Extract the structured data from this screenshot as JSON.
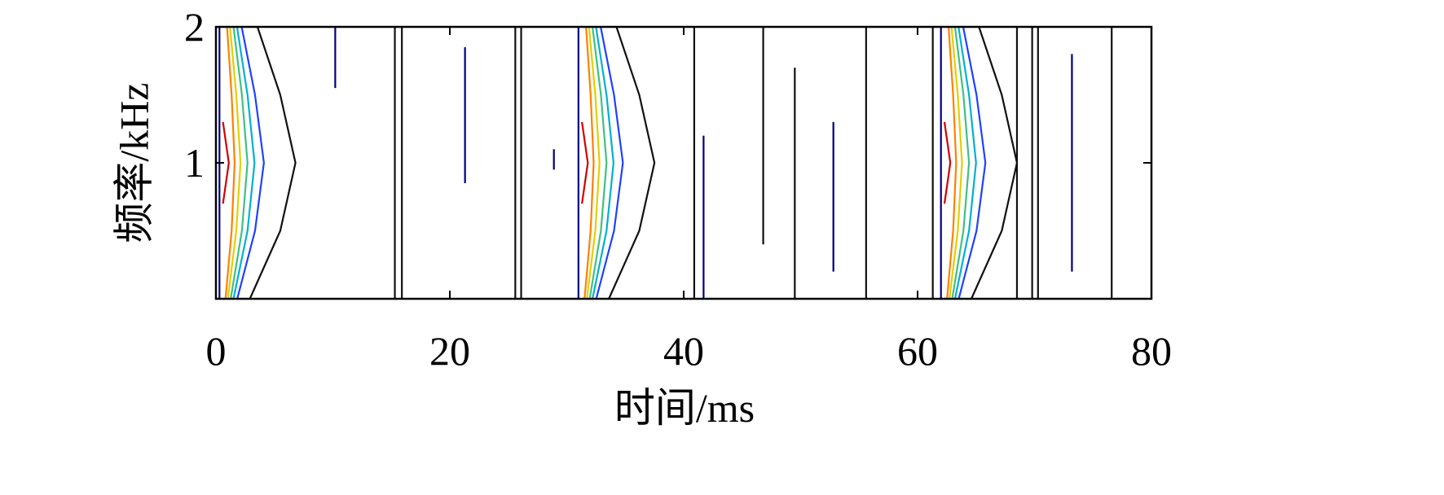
{
  "chart_data": {
    "type": "contour",
    "xlabel": "时间/ms",
    "ylabel": "频率/kHz",
    "xlim": [
      0,
      80
    ],
    "ylim": [
      0,
      2
    ],
    "xticks": [
      0,
      20,
      40,
      60,
      80
    ],
    "yticks": [
      1,
      2
    ],
    "contours": [
      {
        "color": "#000080",
        "x": [
          0.3,
          0.3
        ],
        "y": [
          0,
          2
        ]
      },
      {
        "color": "#d00000",
        "x": [
          0.6,
          1.1,
          0.6
        ],
        "y": [
          0.7,
          1,
          1.3
        ]
      },
      {
        "color": "#ff8000",
        "x": [
          0.82,
          1.34,
          1.6,
          1.34,
          0.95
        ],
        "y": [
          0,
          0.5,
          1,
          1.5,
          2
        ]
      },
      {
        "color": "#e0d000",
        "x": [
          1.02,
          1.74,
          2.1,
          1.74,
          1.2
        ],
        "y": [
          0,
          0.5,
          1,
          1.5,
          2
        ]
      },
      {
        "color": "#40c080",
        "x": [
          1.26,
          2.22,
          2.7,
          2.22,
          1.5
        ],
        "y": [
          0,
          0.5,
          1,
          1.5,
          2
        ]
      },
      {
        "color": "#00b0d0",
        "x": [
          1.5,
          2.7,
          3.3,
          2.7,
          1.8
        ],
        "y": [
          0,
          0.5,
          1,
          1.5,
          2
        ]
      },
      {
        "color": "#2040ff",
        "x": [
          1.82,
          3.34,
          4.1,
          3.34,
          2.2
        ],
        "y": [
          0,
          0.5,
          1,
          1.5,
          2
        ]
      },
      {
        "color": "#101010",
        "x": [
          2.9,
          5.5,
          6.8,
          5.5,
          3.55
        ],
        "y": [
          0,
          0.5,
          1,
          1.5,
          2
        ]
      },
      {
        "color": "#000080",
        "x": [
          31,
          31
        ],
        "y": [
          0,
          2
        ]
      },
      {
        "color": "#d00000",
        "x": [
          31.3,
          31.8,
          31.3
        ],
        "y": [
          0.7,
          1,
          1.3
        ]
      },
      {
        "color": "#ff8000",
        "x": [
          31.52,
          32.04,
          32.3,
          32.04,
          31.65
        ],
        "y": [
          0,
          0.5,
          1,
          1.5,
          2
        ]
      },
      {
        "color": "#e0d000",
        "x": [
          31.72,
          32.44,
          32.8,
          32.44,
          31.9
        ],
        "y": [
          0,
          0.5,
          1,
          1.5,
          2
        ]
      },
      {
        "color": "#40c080",
        "x": [
          31.96,
          32.92,
          33.4,
          32.92,
          32.2
        ],
        "y": [
          0,
          0.5,
          1,
          1.5,
          2
        ]
      },
      {
        "color": "#00b0d0",
        "x": [
          32.2,
          33.4,
          34,
          33.4,
          32.5
        ],
        "y": [
          0,
          0.5,
          1,
          1.5,
          2
        ]
      },
      {
        "color": "#2040ff",
        "x": [
          32.52,
          34.04,
          34.8,
          34.04,
          32.9
        ],
        "y": [
          0,
          0.5,
          1,
          1.5,
          2
        ]
      },
      {
        "color": "#101010",
        "x": [
          33.6,
          36.2,
          37.5,
          36.2,
          34.25
        ],
        "y": [
          0,
          0.5,
          1,
          1.5,
          2
        ]
      },
      {
        "color": "#000080",
        "x": [
          62,
          62
        ],
        "y": [
          0,
          2
        ]
      },
      {
        "color": "#d00000",
        "x": [
          62.3,
          62.8,
          62.3
        ],
        "y": [
          0.7,
          1,
          1.3
        ]
      },
      {
        "color": "#ff8000",
        "x": [
          62.52,
          63.04,
          63.3,
          63.04,
          62.65
        ],
        "y": [
          0,
          0.5,
          1,
          1.5,
          2
        ]
      },
      {
        "color": "#e0d000",
        "x": [
          62.72,
          63.44,
          63.8,
          63.44,
          62.9
        ],
        "y": [
          0,
          0.5,
          1,
          1.5,
          2
        ]
      },
      {
        "color": "#40c080",
        "x": [
          62.96,
          63.92,
          64.4,
          63.92,
          63.2
        ],
        "y": [
          0,
          0.5,
          1,
          1.5,
          2
        ]
      },
      {
        "color": "#00b0d0",
        "x": [
          63.2,
          64.4,
          65,
          64.4,
          63.5
        ],
        "y": [
          0,
          0.5,
          1,
          1.5,
          2
        ]
      },
      {
        "color": "#2040ff",
        "x": [
          63.52,
          65.04,
          65.8,
          65.04,
          63.9
        ],
        "y": [
          0,
          0.5,
          1,
          1.5,
          2
        ]
      },
      {
        "color": "#101010",
        "x": [
          64.6,
          67.2,
          68.5,
          67.2,
          65.25
        ],
        "y": [
          0,
          0.5,
          1,
          1.5,
          2
        ]
      },
      {
        "color": "#101010",
        "x": [
          15.3,
          15.3
        ],
        "y": [
          0,
          2
        ]
      },
      {
        "color": "#101010",
        "x": [
          15.9,
          15.9
        ],
        "y": [
          0,
          2
        ]
      },
      {
        "color": "#000080",
        "x": [
          10.2,
          10.2
        ],
        "y": [
          1.55,
          2
        ]
      },
      {
        "color": "#000080",
        "x": [
          21.3,
          21.3
        ],
        "y": [
          0.85,
          1.85
        ]
      },
      {
        "color": "#101010",
        "x": [
          25.6,
          25.6
        ],
        "y": [
          0,
          2
        ]
      },
      {
        "color": "#101010",
        "x": [
          26.1,
          26.1
        ],
        "y": [
          0,
          2
        ]
      },
      {
        "color": "#000080",
        "x": [
          28.9,
          28.9
        ],
        "y": [
          0.95,
          1.1
        ]
      },
      {
        "color": "#101010",
        "x": [
          40.9,
          40.9
        ],
        "y": [
          0,
          2
        ]
      },
      {
        "color": "#000080",
        "x": [
          41.7,
          41.7
        ],
        "y": [
          0,
          1.2
        ]
      },
      {
        "color": "#101010",
        "x": [
          46.8,
          46.8
        ],
        "y": [
          0.4,
          2
        ]
      },
      {
        "color": "#101010",
        "x": [
          49.5,
          49.5
        ],
        "y": [
          0,
          1.7
        ]
      },
      {
        "color": "#000080",
        "x": [
          52.8,
          52.8
        ],
        "y": [
          0.2,
          1.3
        ]
      },
      {
        "color": "#101010",
        "x": [
          55.6,
          55.6
        ],
        "y": [
          0,
          2
        ]
      },
      {
        "color": "#101010",
        "x": [
          61.3,
          61.3
        ],
        "y": [
          0,
          2
        ]
      },
      {
        "color": "#101010",
        "x": [
          68.5,
          68.5
        ],
        "y": [
          0,
          2
        ]
      },
      {
        "color": "#101010",
        "x": [
          69.8,
          69.8
        ],
        "y": [
          0,
          2
        ]
      },
      {
        "color": "#101010",
        "x": [
          70.3,
          70.3
        ],
        "y": [
          0,
          2
        ]
      },
      {
        "color": "#000080",
        "x": [
          73.2,
          73.2
        ],
        "y": [
          0.2,
          1.8
        ]
      },
      {
        "color": "#101010",
        "x": [
          76.6,
          76.6
        ],
        "y": [
          0,
          2
        ]
      }
    ]
  }
}
